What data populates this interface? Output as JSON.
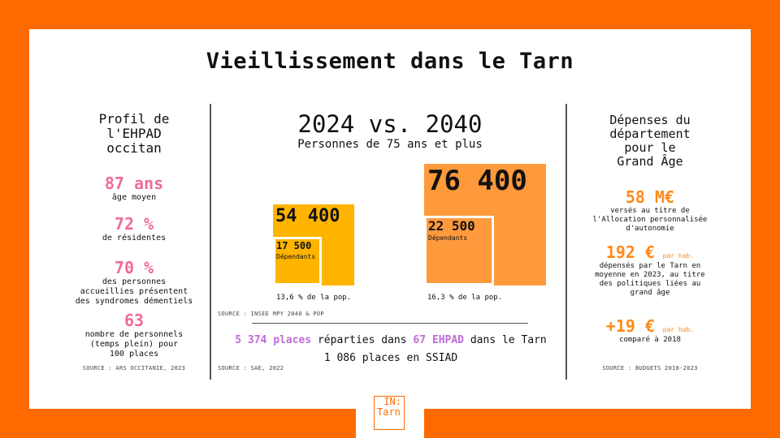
{
  "title": "Vieillissement dans le Tarn",
  "left": {
    "heading": [
      "Profil de",
      "l'EHPAD",
      "occitan"
    ],
    "stats": [
      {
        "value": "87 ans",
        "label": [
          "âge moyen"
        ]
      },
      {
        "value": "72 %",
        "label": [
          "de résidentes"
        ]
      },
      {
        "value": "70 %",
        "label": [
          "des personnes",
          "accueillies présentent",
          "des syndromes démentiels"
        ]
      },
      {
        "value": "63",
        "label": [
          "nombre de personnels",
          "(temps plein) pour",
          "100 places"
        ]
      }
    ],
    "source": "SOURCE : ARS OCCITANIE, 2023"
  },
  "middle": {
    "heading": "2024 vs. 2040",
    "subheading": "Personnes de 75 ans et plus",
    "y2024": {
      "total": "54 400",
      "dependants_value": "17 500",
      "dependants_label": "Dépendants",
      "share": "13,6 % de la pop."
    },
    "y2040": {
      "total": "76 400",
      "dependants_value": "22 500",
      "dependants_label": "Dépendants",
      "share": "16,3 % de la pop."
    },
    "source1": "SOURCE : INSEE MPY 2040 & POP",
    "places_value": "5 374 places",
    "places_text1": " réparties dans ",
    "ehpad_value": "67 EHPAD",
    "places_text2": " dans le Tarn",
    "ssiad": "1 086 places en SSIAD",
    "source2": "SOURCE : SAE, 2022"
  },
  "right": {
    "heading": [
      "Dépenses du",
      "département",
      "pour le",
      "Grand Âge"
    ],
    "stat1": {
      "value": "58 M€",
      "label": [
        "versés au titre de",
        "l'Allocation personnalisée",
        "d'autonomie"
      ]
    },
    "stat2": {
      "value": "192 €",
      "unit": "par hab.",
      "label": [
        "dépensés par le Tarn en",
        "moyenne en 2023, au titre",
        "des politiques liées au",
        "grand âge"
      ]
    },
    "stat3": {
      "value": "+19 €",
      "unit": "par hab.",
      "label": [
        "comparé à 2018"
      ]
    },
    "source": "SOURCE : BUDGETS 2018-2023"
  },
  "logo": {
    "line1": "IN:",
    "line2": "Tarn"
  },
  "colors": {
    "background": "#ff6a00",
    "yellow": "#ffb400",
    "orange_sq": "#ff9a3c",
    "pink": "#f06b9a",
    "purple": "#c06bd8"
  }
}
